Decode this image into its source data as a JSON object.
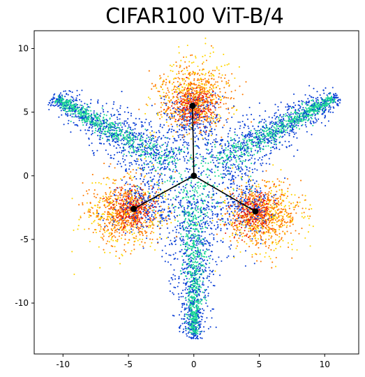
{
  "chart_data": {
    "type": "scatter",
    "title": "CIFAR100 ViT-B/4",
    "xlabel": "",
    "ylabel": "",
    "xlim": [
      -12.2,
      12.6
    ],
    "ylim": [
      -14.0,
      11.4
    ],
    "xticks": [
      -10,
      -5,
      0,
      5,
      10
    ],
    "yticks": [
      -10,
      -5,
      0,
      5,
      10
    ],
    "grid": false,
    "colors": {
      "teal": "#19d694",
      "blue": "#0a3fd6",
      "red": "#e8180c",
      "orange": "#ff7b00",
      "yellow": "#ffd400",
      "marker": "#000000"
    },
    "clusters": {
      "hubs": [
        [
          0,
          5.5
        ],
        [
          -4.7,
          -2.6
        ],
        [
          4.7,
          -2.8
        ]
      ],
      "arm_tips": [
        [
          10.5,
          6.0
        ],
        [
          -10.3,
          5.9
        ],
        [
          0,
          -12.2
        ]
      ]
    },
    "vectors": {
      "origin": [
        0,
        0
      ],
      "tips": [
        [
          -0.1,
          5.5
        ],
        [
          -4.6,
          -2.6
        ],
        [
          4.7,
          -2.8
        ]
      ]
    }
  }
}
